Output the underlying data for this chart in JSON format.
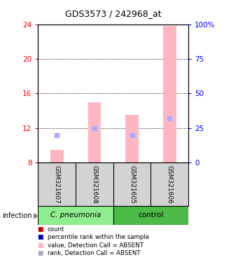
{
  "title": "GDS3573 / 242968_at",
  "samples": [
    "GSM321607",
    "GSM321608",
    "GSM321605",
    "GSM321606"
  ],
  "ylim_left": [
    8,
    24
  ],
  "ylim_right": [
    0,
    100
  ],
  "yticks_left": [
    8,
    12,
    16,
    20,
    24
  ],
  "yticks_right": [
    0,
    25,
    50,
    75,
    100
  ],
  "ytick_labels_right": [
    "0",
    "25",
    "50",
    "75",
    "100%"
  ],
  "bar_values": [
    9.5,
    15.0,
    13.5,
    23.8
  ],
  "bar_color": "#ffb6c1",
  "bar_width": 0.35,
  "rank_pct": [
    20,
    25,
    20,
    32
  ],
  "rank_marker_color": "#aaaaff",
  "rank_marker_size": 5,
  "group_label_pneumonia": "C. pneumonia",
  "group_label_control": "control",
  "infection_label": "infection",
  "bg_color": "#d3d3d3",
  "group_bg_pneumonia": "#90EE90",
  "group_bg_control": "#4CBB47",
  "plot_bg": "#ffffff",
  "legend_items": [
    {
      "label": "count",
      "color": "#cc0000"
    },
    {
      "label": "percentile rank within the sample",
      "color": "#0000cc"
    },
    {
      "label": "value, Detection Call = ABSENT",
      "color": "#ffb6c1"
    },
    {
      "label": "rank, Detection Call = ABSENT",
      "color": "#aaaacc"
    }
  ]
}
